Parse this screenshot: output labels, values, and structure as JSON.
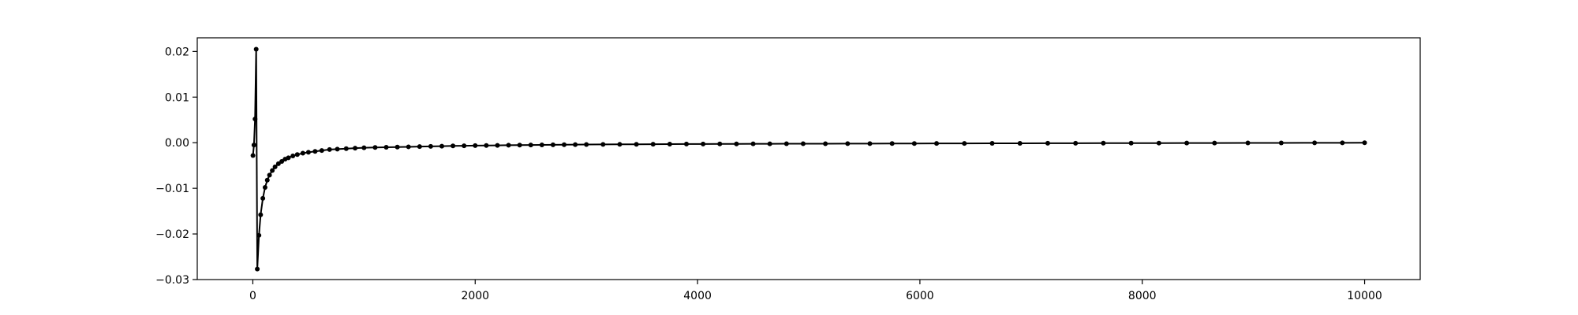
{
  "chart_data": {
    "type": "line",
    "title": "",
    "xlabel": "",
    "ylabel": "",
    "xlim": [
      -500,
      10500
    ],
    "ylim": [
      -0.03,
      0.023
    ],
    "xticks": [
      0,
      2000,
      4000,
      6000,
      8000,
      10000
    ],
    "xtick_labels": [
      "0",
      "2000",
      "4000",
      "6000",
      "8000",
      "10000"
    ],
    "yticks": [
      -0.03,
      -0.02,
      -0.01,
      0.0,
      0.01,
      0.02
    ],
    "ytick_labels": [
      "−0.03",
      "−0.02",
      "−0.01",
      "0.00",
      "0.01",
      "0.02"
    ],
    "grid": false,
    "legend": "none",
    "colors": {
      "line": "#000000",
      "marker": "#000000",
      "axes": "#000000",
      "background": "#ffffff"
    },
    "series": [
      {
        "points": [
          [
            1,
            -0.0028
          ],
          [
            10,
            -0.0005
          ],
          [
            20,
            0.0052
          ],
          [
            30,
            0.0205
          ],
          [
            40,
            -0.0277
          ],
          [
            55,
            -0.0203
          ],
          [
            70,
            -0.0158
          ],
          [
            90,
            -0.0122
          ],
          [
            110,
            -0.0098
          ],
          [
            130,
            -0.0082
          ],
          [
            150,
            -0.0071
          ],
          [
            175,
            -0.0061
          ],
          [
            200,
            -0.0053
          ],
          [
            230,
            -0.0046
          ],
          [
            260,
            -0.0041
          ],
          [
            290,
            -0.0036
          ],
          [
            320,
            -0.0033
          ],
          [
            360,
            -0.0029
          ],
          [
            400,
            -0.0026
          ],
          [
            450,
            -0.0023
          ],
          [
            500,
            -0.0021
          ],
          [
            560,
            -0.0019
          ],
          [
            620,
            -0.0017
          ],
          [
            690,
            -0.0015
          ],
          [
            760,
            -0.0014
          ],
          [
            840,
            -0.0013
          ],
          [
            920,
            -0.0012
          ],
          [
            1000,
            -0.0011
          ],
          [
            1100,
            -0.00105
          ],
          [
            1200,
            -0.001
          ],
          [
            1300,
            -0.00095
          ],
          [
            1400,
            -0.0009
          ],
          [
            1500,
            -0.00085
          ],
          [
            1600,
            -0.0008
          ],
          [
            1700,
            -0.00075
          ],
          [
            1800,
            -0.0007
          ],
          [
            1900,
            -0.00067
          ],
          [
            2000,
            -0.00064
          ],
          [
            2100,
            -0.00061
          ],
          [
            2200,
            -0.00058
          ],
          [
            2300,
            -0.00055
          ],
          [
            2400,
            -0.00052
          ],
          [
            2500,
            -0.0005
          ],
          [
            2600,
            -0.00048
          ],
          [
            2700,
            -0.00046
          ],
          [
            2800,
            -0.00044
          ],
          [
            2900,
            -0.00042
          ],
          [
            3000,
            -0.0004
          ],
          [
            3150,
            -0.00038
          ],
          [
            3300,
            -0.00036
          ],
          [
            3450,
            -0.00034
          ],
          [
            3600,
            -0.00032
          ],
          [
            3750,
            -0.0003
          ],
          [
            3900,
            -0.00029
          ],
          [
            4050,
            -0.00028
          ],
          [
            4200,
            -0.00027
          ],
          [
            4350,
            -0.00026
          ],
          [
            4500,
            -0.00025
          ],
          [
            4650,
            -0.00024
          ],
          [
            4800,
            -0.00023
          ],
          [
            4950,
            -0.00022
          ],
          [
            5150,
            -0.00021
          ],
          [
            5350,
            -0.0002
          ],
          [
            5550,
            -0.00019
          ],
          [
            5750,
            -0.00018
          ],
          [
            5950,
            -0.00017
          ],
          [
            6150,
            -0.00016
          ],
          [
            6400,
            -0.00015
          ],
          [
            6650,
            -0.00014
          ],
          [
            6900,
            -0.00013
          ],
          [
            7150,
            -0.00012
          ],
          [
            7400,
            -0.00011
          ],
          [
            7650,
            -0.0001
          ],
          [
            7900,
            -9e-05
          ],
          [
            8150,
            -8e-05
          ],
          [
            8400,
            -7e-05
          ],
          [
            8650,
            -6e-05
          ],
          [
            8950,
            -5e-05
          ],
          [
            9250,
            -4e-05
          ],
          [
            9550,
            -3e-05
          ],
          [
            9800,
            -2e-05
          ],
          [
            10000,
            -1e-05
          ]
        ]
      }
    ]
  }
}
